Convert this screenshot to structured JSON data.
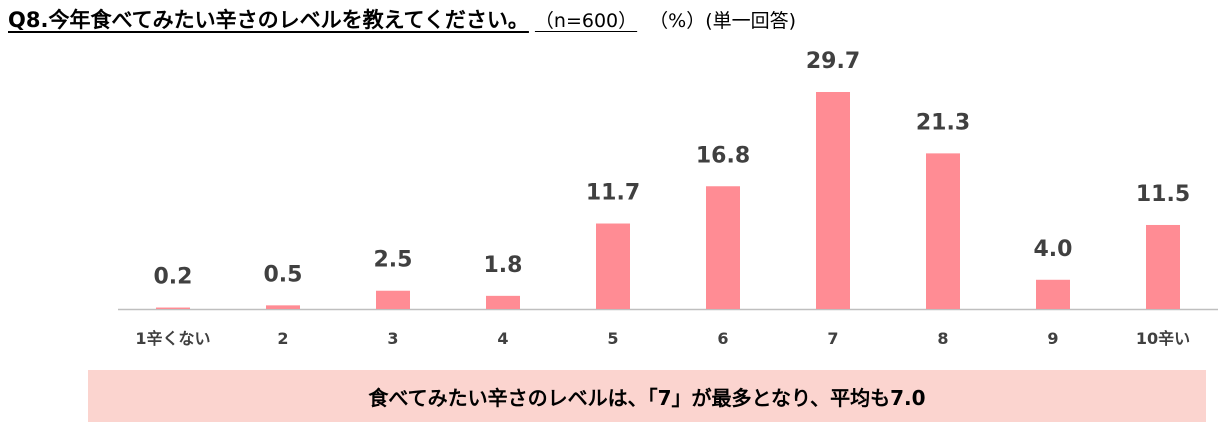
{
  "title": {
    "question": "Q8.今年食べてみたい辛さのレベルを教えてください。",
    "sample": "（n=600）",
    "unit": "（%）(単一回答)"
  },
  "summary": "食べてみたい辛さのレベルは、「7」が最多となり、平均も7.0",
  "colors": {
    "bar": "#ff8c94",
    "axis": "#bfbfbf",
    "label": "#404040",
    "summary_bg": "#fbd4cf"
  },
  "chart_data": {
    "type": "bar",
    "categories": [
      "1辛くない",
      "2",
      "3",
      "4",
      "5",
      "6",
      "7",
      "8",
      "9",
      "10辛い"
    ],
    "values": [
      0.2,
      0.5,
      2.5,
      1.8,
      11.7,
      16.8,
      29.7,
      21.3,
      4.0,
      11.5
    ],
    "value_labels": [
      "0.2",
      "0.5",
      "2.5",
      "1.8",
      "11.7",
      "16.8",
      "29.7",
      "21.3",
      "4.0",
      "11.5"
    ],
    "ylim": [
      0,
      30
    ],
    "grid": false,
    "legend": "none"
  }
}
